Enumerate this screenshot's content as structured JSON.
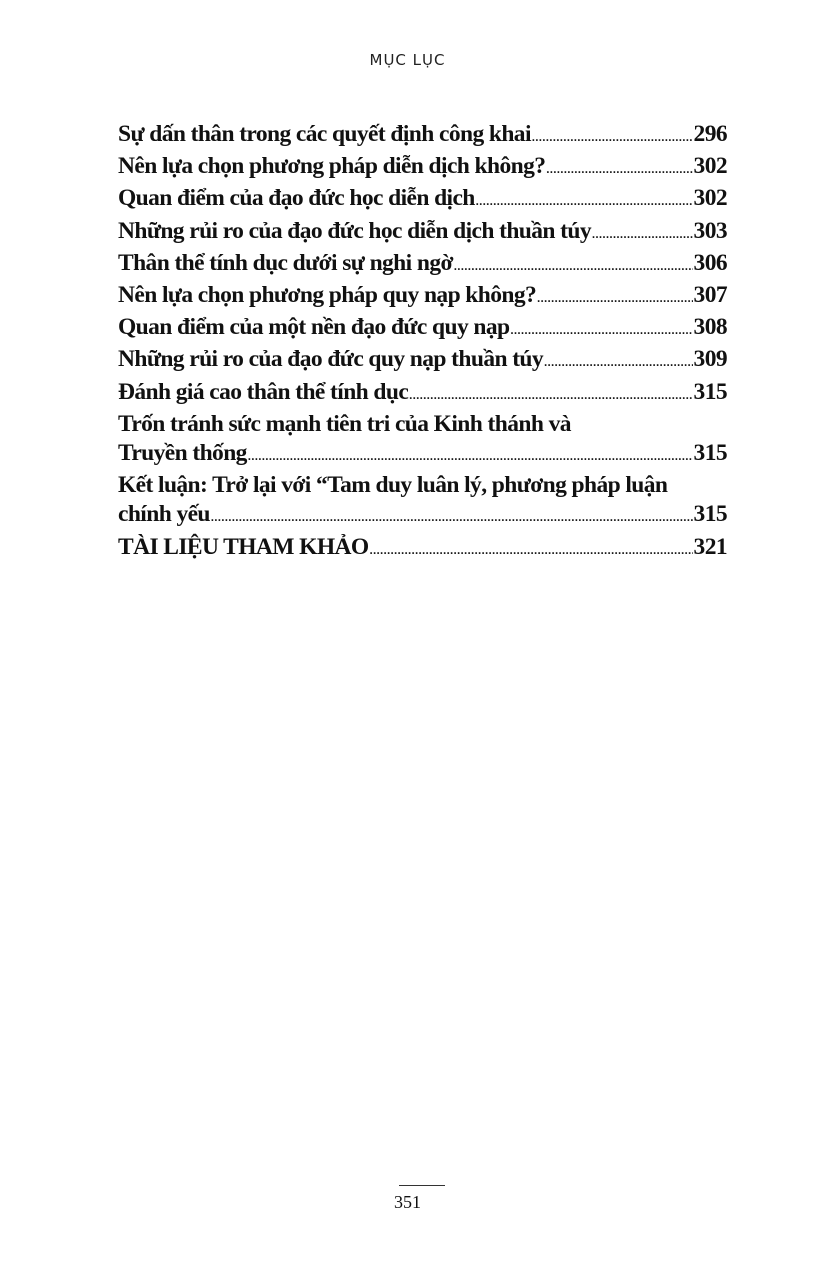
{
  "header": {
    "title": "MỤC LỤC"
  },
  "toc": [
    {
      "title": "Sự dấn thân trong các quyết định công khai",
      "page": "296"
    },
    {
      "title": "Nên lựa chọn phương pháp diễn dịch không?",
      "page": "302"
    },
    {
      "title": "Quan điểm của đạo đức học diễn dịch",
      "page": "302"
    },
    {
      "title": "Những rủi ro của đạo đức học diễn dịch thuần túy",
      "page": "303"
    },
    {
      "title": "Thân thể tính dục dưới sự nghi ngờ",
      "page": "306"
    },
    {
      "title": "Nên lựa chọn phương pháp quy nạp không?",
      "page": "307"
    },
    {
      "title": "Quan điểm của một nền đạo đức quy nạp",
      "page": "308"
    },
    {
      "title": "Những rủi ro của đạo đức quy nạp thuần túy",
      "page": "309"
    },
    {
      "title": "Đánh giá cao thân thể tính dục",
      "page": "315"
    },
    {
      "title_line1": "Trốn tránh sức mạnh tiên tri của Kinh thánh và",
      "title": "Truyền thống",
      "page": "315"
    },
    {
      "title_line1": "Kết luận: Trở lại với “Tam duy luân lý, phương pháp luận",
      "title": "chính yếu",
      "page": "315"
    },
    {
      "title": "TÀI LIỆU THAM KHẢO",
      "page": "321"
    }
  ],
  "footer": {
    "page_number": "351"
  }
}
